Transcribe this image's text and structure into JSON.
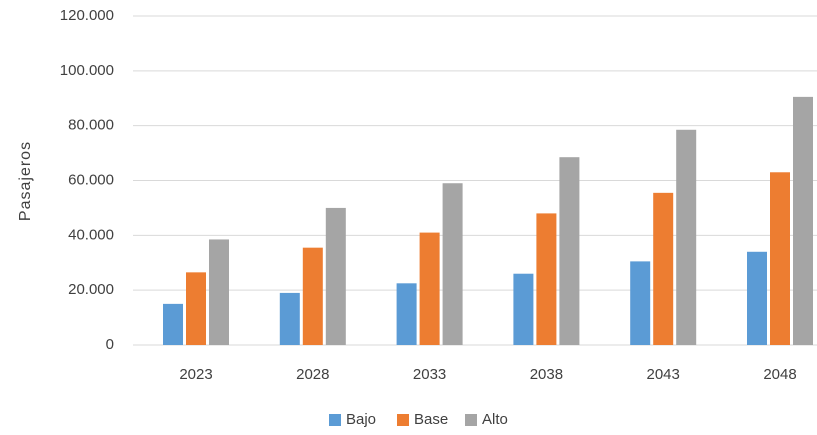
{
  "chart_data": {
    "type": "bar",
    "title": "",
    "xlabel": "",
    "ylabel": "Pasajeros",
    "categories": [
      "2023",
      "2028",
      "2033",
      "2038",
      "2043",
      "2048"
    ],
    "series": [
      {
        "name": "Bajo",
        "color": "#5B9BD5",
        "values": [
          15000,
          19000,
          22500,
          26000,
          30500,
          34000
        ]
      },
      {
        "name": "Base",
        "color": "#ED7D31",
        "values": [
          26500,
          35500,
          41000,
          48000,
          55500,
          63000
        ]
      },
      {
        "name": "Alto",
        "color": "#A5A5A5",
        "values": [
          38500,
          50000,
          59000,
          68500,
          78500,
          90500
        ]
      }
    ],
    "ylim": [
      0,
      120000
    ],
    "yticks": [
      0,
      20000,
      40000,
      60000,
      80000,
      100000,
      120000
    ],
    "ytick_labels": [
      "0",
      "20.000",
      "40.000",
      "60.000",
      "80.000",
      "100.000",
      "120.000"
    ],
    "grid": true,
    "legend_position": "bottom-center",
    "gridline_color": "#D9D9D9"
  }
}
